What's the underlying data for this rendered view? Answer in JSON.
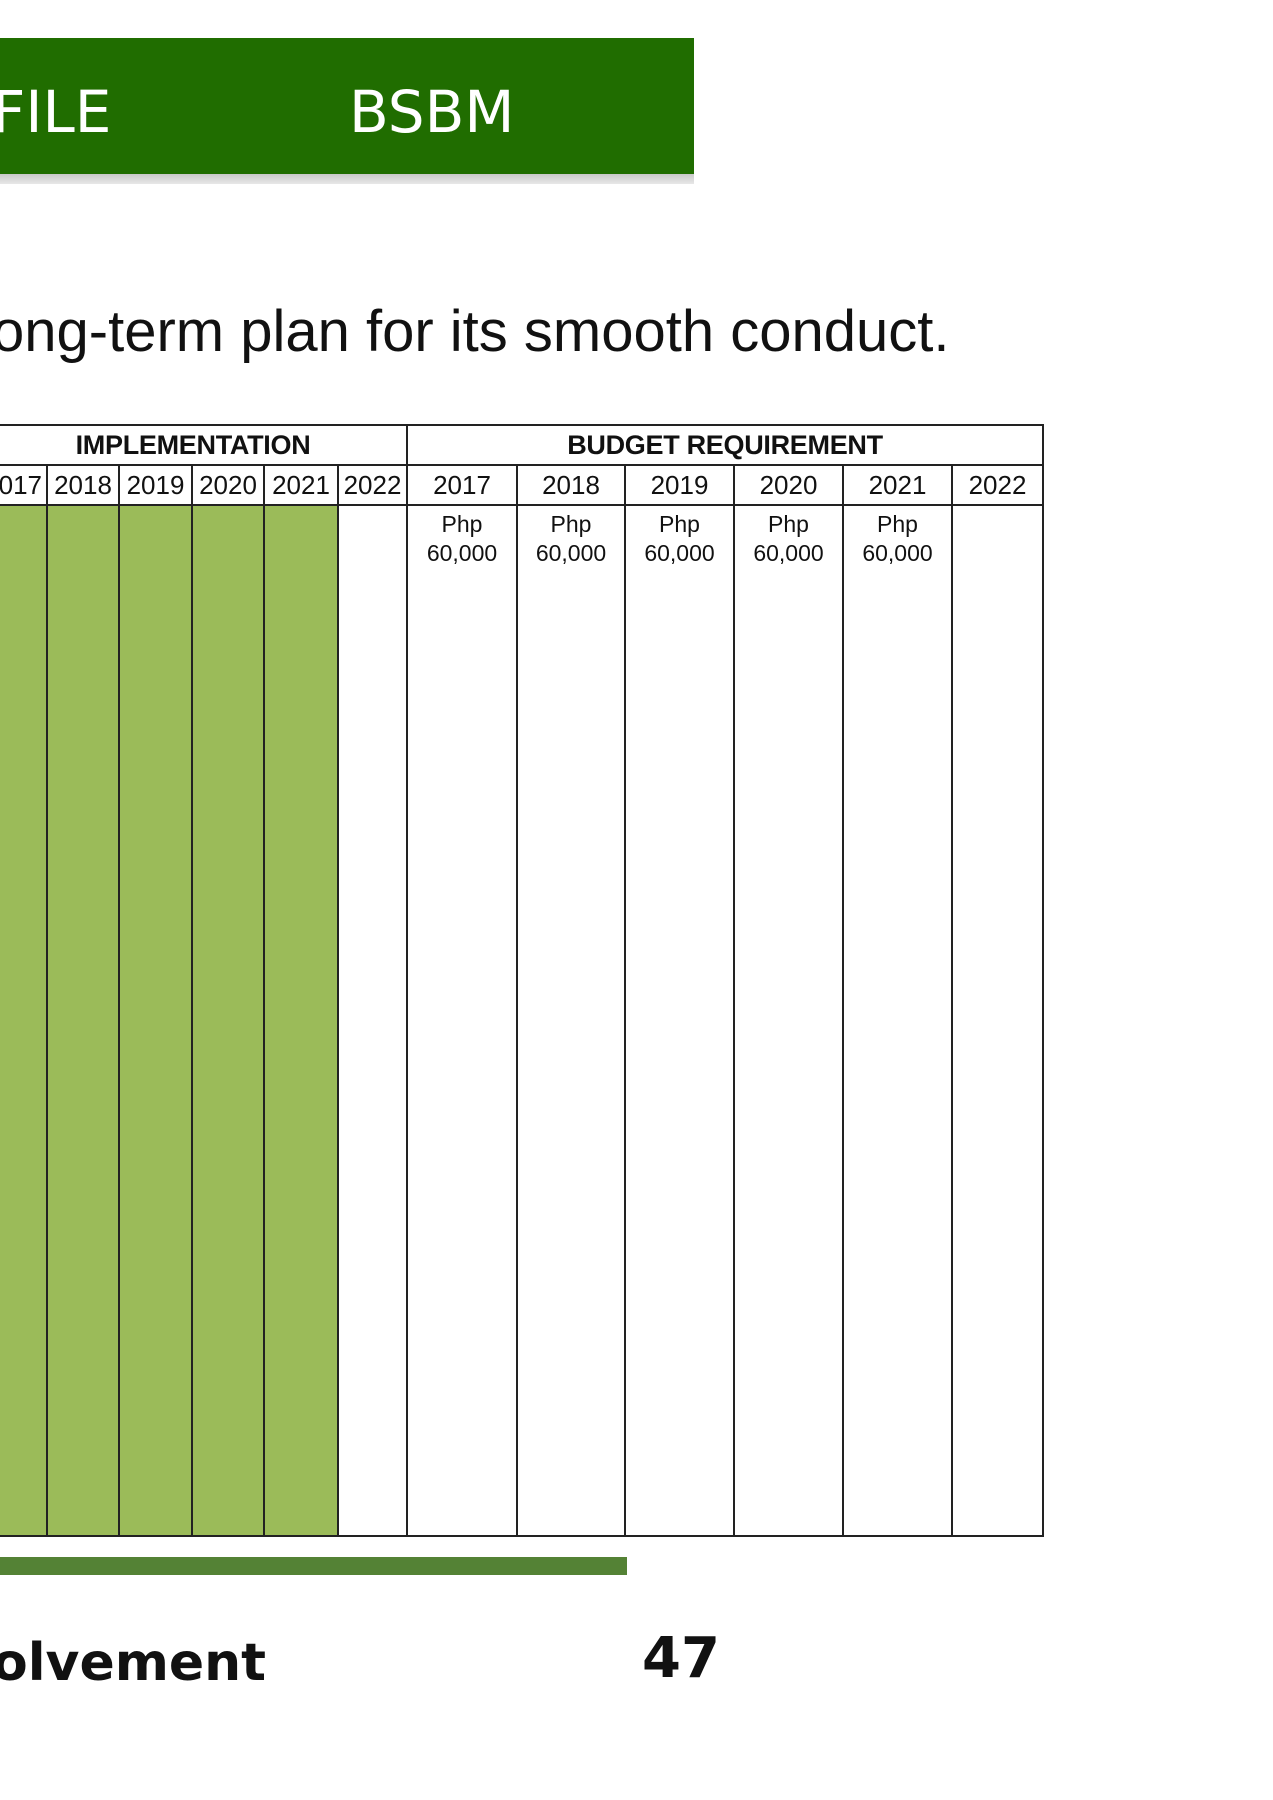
{
  "header": {
    "left_text": "FILE",
    "right_text": "BSBM",
    "color": "#206d00"
  },
  "intro_text": "ong-term plan for its smooth conduct.",
  "table": {
    "implementation_header": "IMPLEMENTATION",
    "budget_header": "BUDGET REQUIREMENT",
    "implementation_years": [
      "017",
      "2018",
      "2019",
      "2020",
      "2021",
      "2022"
    ],
    "implementation_filled": [
      true,
      true,
      true,
      true,
      true,
      false
    ],
    "fill_color": "#9bbb59",
    "budget_years": [
      "2017",
      "2018",
      "2019",
      "2020",
      "2021",
      "2022"
    ],
    "budget_values": [
      {
        "currency": "Php",
        "amount": "60,000"
      },
      {
        "currency": "Php",
        "amount": "60,000"
      },
      {
        "currency": "Php",
        "amount": "60,000"
      },
      {
        "currency": "Php",
        "amount": "60,000"
      },
      {
        "currency": "Php",
        "amount": "60,000"
      },
      {
        "currency": "",
        "amount": ""
      }
    ]
  },
  "footer": {
    "left_text": "olvement",
    "page_number": "47",
    "bar_color": "#548235"
  }
}
